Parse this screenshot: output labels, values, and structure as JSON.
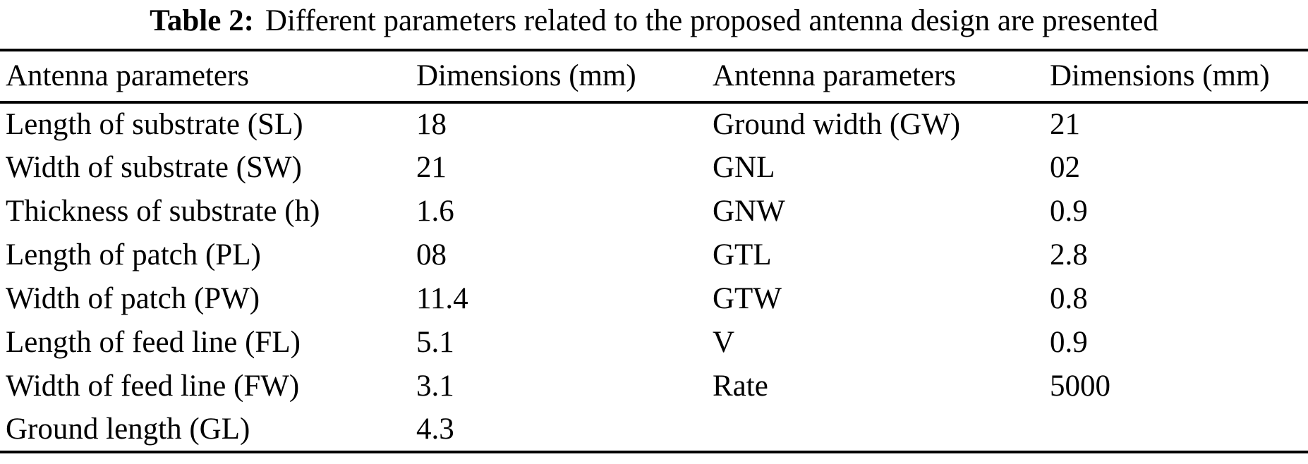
{
  "caption": {
    "label": "Table 2:",
    "text": "Different parameters related to the proposed antenna design are presented"
  },
  "table": {
    "headers": [
      "Antenna parameters",
      "Dimensions (mm)",
      "Antenna parameters",
      "Dimensions (mm)"
    ],
    "rows": [
      [
        "Length of substrate (SL)",
        "18",
        "Ground width (GW)",
        "21"
      ],
      [
        "Width of substrate (SW)",
        "21",
        "GNL",
        "02"
      ],
      [
        "Thickness of substrate (h)",
        "1.6",
        "GNW",
        "0.9"
      ],
      [
        "Length of patch (PL)",
        "08",
        "GTL",
        "2.8"
      ],
      [
        "Width of patch (PW)",
        "11.4",
        "GTW",
        "0.8"
      ],
      [
        "Length of feed line (FL)",
        "5.1",
        "V",
        "0.9"
      ],
      [
        "Width of feed line (FW)",
        "3.1",
        "Rate",
        "5000"
      ],
      [
        "Ground length (GL)",
        "4.3",
        "",
        ""
      ]
    ]
  }
}
